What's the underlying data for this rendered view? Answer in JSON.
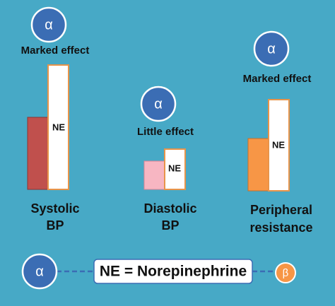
{
  "groups": [
    {
      "receptor": "α",
      "effect": "Marked effect",
      "bar_label": "NE",
      "title_lines": [
        "Systolic",
        "BP"
      ]
    },
    {
      "receptor": "α",
      "effect": "Little effect",
      "bar_label": "NE",
      "title_lines": [
        "Diastolic",
        "BP"
      ]
    },
    {
      "receptor": "α",
      "effect": "Marked effect",
      "bar_label": "NE",
      "title_lines": [
        "Peripheral",
        "resistance"
      ]
    }
  ],
  "legend": {
    "left_symbol": "α",
    "text": "NE = Norepinephrine",
    "right_symbol": "β"
  }
}
